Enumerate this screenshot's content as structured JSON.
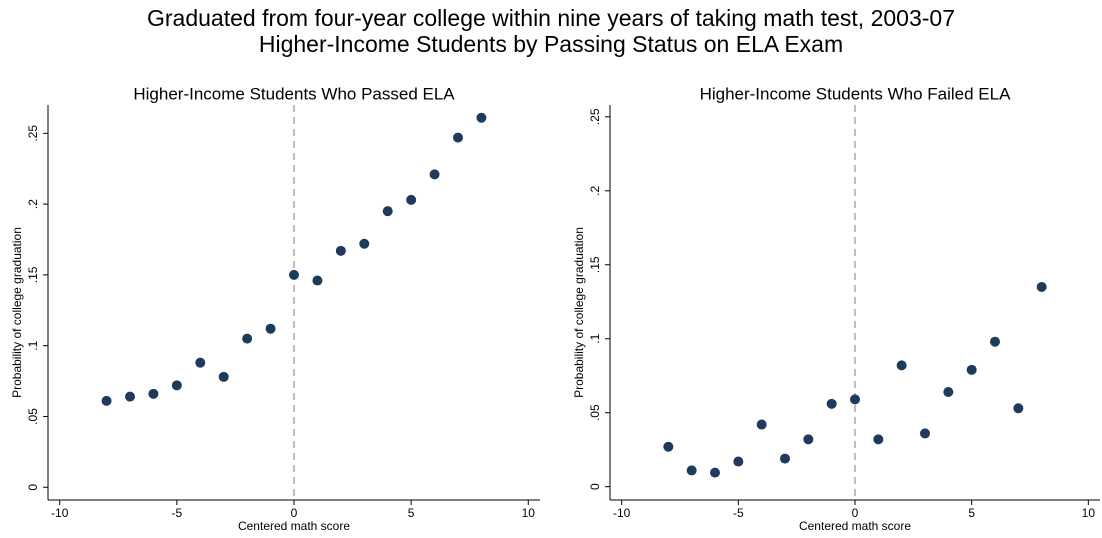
{
  "title": [
    "Graduated from four-year college within nine years of taking math test, 2003-07",
    "Higher-Income Students by Passing Status on ELA Exam"
  ],
  "chart_data": [
    {
      "type": "scatter",
      "title": "Higher-Income Students Who Passed ELA",
      "xlabel": "Centered math score",
      "ylabel": "Probability of college graduation",
      "color": "#1f3b5c",
      "refline_x": 0,
      "x": [
        -8,
        -7,
        -6,
        -5,
        -4,
        -3,
        -2,
        -1,
        0,
        1,
        2,
        3,
        4,
        5,
        6,
        7,
        8
      ],
      "values": [
        0.061,
        0.064,
        0.066,
        0.072,
        0.088,
        0.078,
        0.105,
        0.112,
        0.15,
        0.146,
        0.167,
        0.172,
        0.195,
        0.203,
        0.221,
        0.247,
        0.261
      ],
      "xlim": [
        -10.5,
        10.5
      ],
      "ylim": [
        -0.009,
        0.27
      ],
      "xticks": [
        -10,
        -5,
        0,
        5,
        10
      ],
      "yticks": [
        0,
        {
          "value": 0.05,
          "label": ".05"
        },
        {
          "value": 0.1,
          "label": ".1"
        },
        {
          "value": 0.15,
          "label": ".15"
        },
        {
          "value": 0.2,
          "label": ".2"
        },
        {
          "value": 0.25,
          "label": ".25"
        }
      ]
    },
    {
      "type": "scatter",
      "title": "Higher-Income Students Who Failed ELA",
      "xlabel": "Centered math score",
      "ylabel": "Probability of college graduation",
      "color": "#1f3b5c",
      "refline_x": 0,
      "x": [
        -8,
        -7,
        -6,
        -5,
        -4,
        -3,
        -2,
        -1,
        0,
        1,
        2,
        3,
        4,
        5,
        6,
        7,
        8
      ],
      "values": [
        0.027,
        0.011,
        0.0095,
        0.017,
        0.042,
        0.019,
        0.032,
        0.056,
        0.059,
        0.032,
        0.082,
        0.036,
        0.064,
        0.079,
        0.098,
        0.053,
        0.135
      ],
      "xlim": [
        -10.5,
        10.5
      ],
      "ylim": [
        -0.009,
        0.258
      ],
      "xticks": [
        -10,
        -5,
        0,
        5,
        10
      ],
      "yticks": [
        0,
        {
          "value": 0.05,
          "label": ".05"
        },
        {
          "value": 0.1,
          "label": ".1"
        },
        {
          "value": 0.15,
          "label": ".15"
        },
        {
          "value": 0.2,
          "label": ".2"
        },
        {
          "value": 0.25,
          "label": ".25"
        }
      ]
    }
  ]
}
